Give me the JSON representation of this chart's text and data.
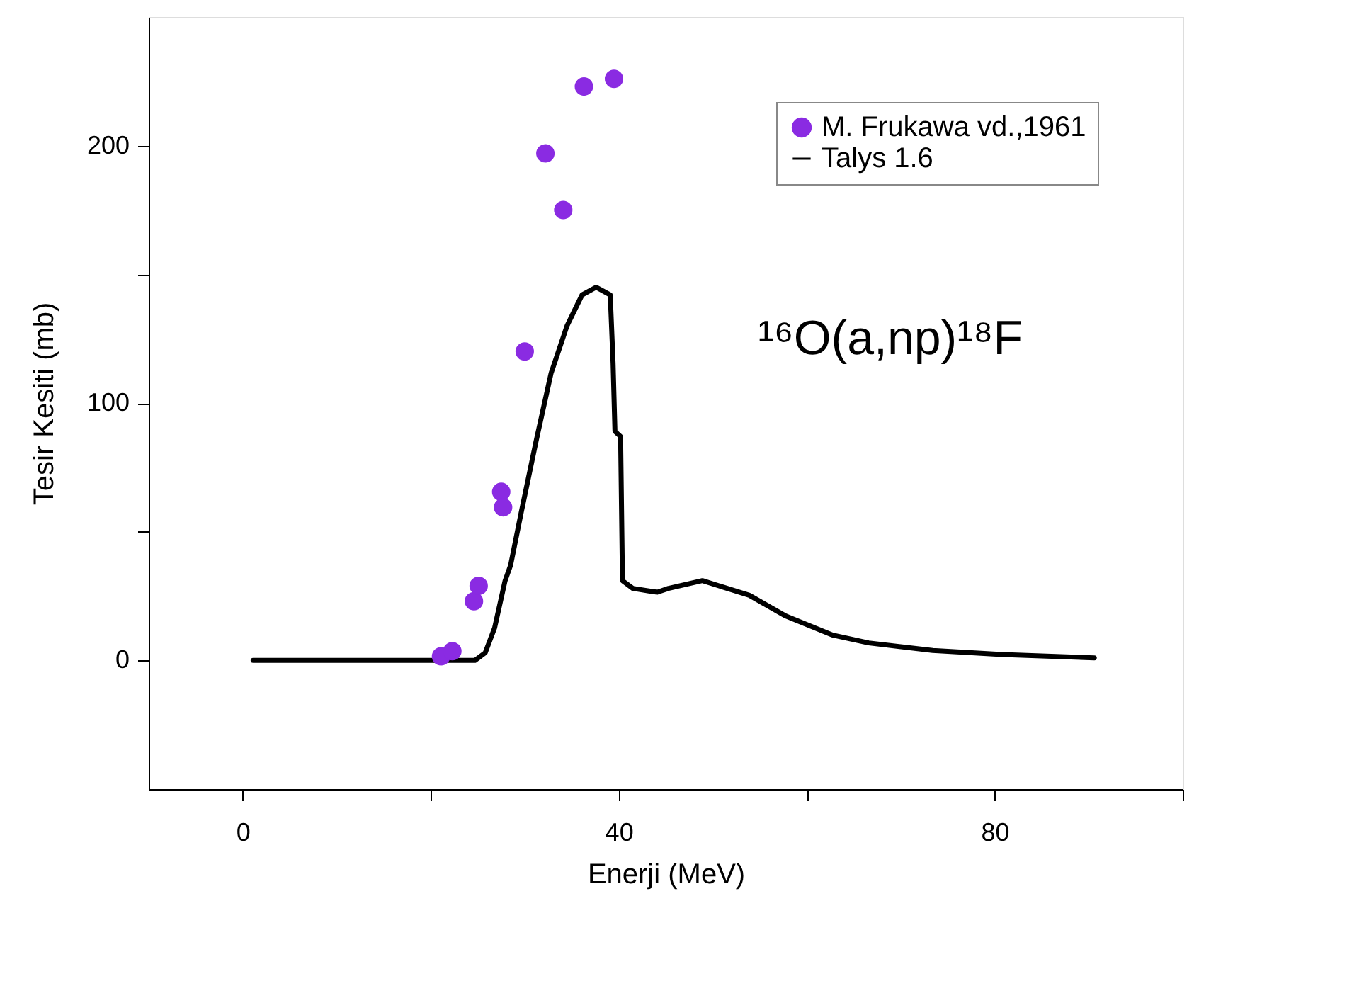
{
  "chart_data": {
    "type": "scatter",
    "xlabel": "Enerji (MeV)",
    "ylabel": "Tesir Kesiti (mb)",
    "xlim": [
      -10,
      100
    ],
    "xticks": [
      0,
      {
        "value": 20,
        "label": null
      },
      40,
      {
        "value": 60,
        "label": null
      },
      80,
      {
        "value": 100,
        "label": null
      }
    ],
    "ylim": [
      -50,
      250
    ],
    "yticks": [
      0,
      {
        "value": 50,
        "label": null
      },
      100,
      {
        "value": 150,
        "label": null
      },
      200
    ],
    "grid": false,
    "legend": "top right",
    "annotations": [
      "¹⁶O(a,np)¹⁸F"
    ],
    "series": [
      {
        "name": "M. Frukawa vd.,1961",
        "marker": "circle",
        "color": "#8a2be2",
        "x": [
          21.1,
          22.3,
          24.6,
          25.1,
          27.5,
          27.7,
          30.0,
          32.2,
          34.1,
          36.3,
          39.5
        ],
        "values": [
          1.6,
          3.6,
          23,
          29,
          65.5,
          59.5,
          120,
          197,
          175,
          223,
          226
        ]
      },
      {
        "name": "Talys 1.6",
        "type": "line",
        "marker": "none",
        "line_style": "solid",
        "color": "#000000",
        "x": [
          1.1,
          24.7,
          25.8,
          26.8,
          27.9,
          28.5,
          29.6,
          31.2,
          32.8,
          34.5,
          36.1,
          37.6,
          39.1,
          39.4,
          39.6,
          40.2,
          40.4,
          41.5,
          43.2,
          44.1,
          45.3,
          48.9,
          53.9,
          57.8,
          62.7,
          66.6,
          73.4,
          80.8,
          90.6
        ],
        "values": [
          0,
          0,
          3,
          12.7,
          30.8,
          37,
          57,
          85,
          111.5,
          130,
          142,
          145,
          142,
          115.5,
          89,
          87,
          31,
          28,
          27,
          26.5,
          28,
          31,
          25.3,
          17.2,
          9.9,
          6.8,
          3.9,
          2.3,
          1.0
        ]
      }
    ]
  }
}
